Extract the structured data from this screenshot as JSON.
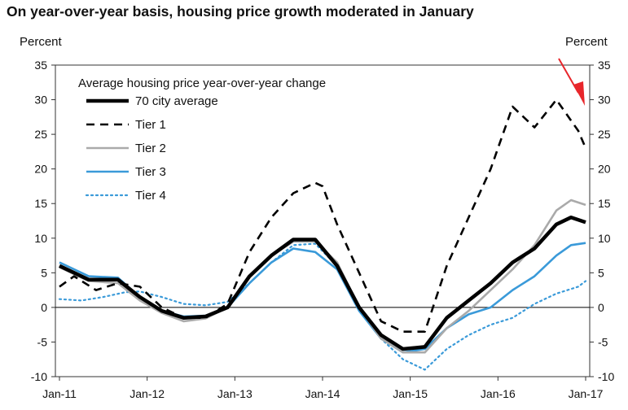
{
  "title": "On year-over-year basis, housing price growth moderated in January",
  "chart_data": {
    "type": "line",
    "ylabel_left": "Percent",
    "ylabel_right": "Percent",
    "ylim": [
      -10,
      35
    ],
    "yticks": [
      -10,
      -5,
      0,
      5,
      10,
      15,
      20,
      25,
      30,
      35
    ],
    "xlim": [
      "2011-01",
      "2017-01"
    ],
    "xticks": [
      "Jan-11",
      "Jan-12",
      "Jan-13",
      "Jan-14",
      "Jan-15",
      "Jan-16",
      "Jan-17"
    ],
    "zero_line": true,
    "legend_title": "Average housing price year-over-year change",
    "legend_position": "top-left",
    "annotations": [
      "red arrow pointing down at the January 2017 value"
    ],
    "series": [
      {
        "name": "70 city average",
        "style": "solid-thick",
        "color": "#000000",
        "x": [
          "2011-01",
          "2011-05",
          "2011-09",
          "2011-12",
          "2012-03",
          "2012-06",
          "2012-09",
          "2012-12",
          "2013-03",
          "2013-06",
          "2013-09",
          "2013-12",
          "2014-03",
          "2014-06",
          "2014-09",
          "2014-12",
          "2015-03",
          "2015-06",
          "2015-09",
          "2015-12",
          "2016-03",
          "2016-06",
          "2016-09",
          "2016-11",
          "2017-01"
        ],
        "values": [
          6.0,
          4.0,
          4.0,
          1.5,
          -0.5,
          -1.5,
          -1.3,
          0.0,
          4.5,
          7.5,
          9.8,
          9.8,
          6.0,
          0.0,
          -4.0,
          -6.0,
          -5.7,
          -1.5,
          1.0,
          3.5,
          6.5,
          8.5,
          12.0,
          13.0,
          12.3
        ]
      },
      {
        "name": "Tier 1",
        "style": "dashed",
        "color": "#000000",
        "x": [
          "2011-01",
          "2011-03",
          "2011-06",
          "2011-09",
          "2011-12",
          "2012-03",
          "2012-06",
          "2012-09",
          "2012-12",
          "2013-03",
          "2013-06",
          "2013-09",
          "2013-12",
          "2014-01",
          "2014-03",
          "2014-06",
          "2014-09",
          "2014-12",
          "2015-03",
          "2015-06",
          "2015-09",
          "2015-12",
          "2016-03",
          "2016-06",
          "2016-09",
          "2016-12",
          "2017-01"
        ],
        "values": [
          3.0,
          4.5,
          2.5,
          3.5,
          3.0,
          0.0,
          -1.5,
          -1.5,
          0.5,
          8.0,
          13.0,
          16.5,
          18.0,
          17.5,
          12.0,
          5.0,
          -2.0,
          -3.5,
          -3.5,
          6.0,
          13.0,
          20.0,
          29.0,
          26.0,
          30.0,
          25.5,
          23.0
        ]
      },
      {
        "name": "Tier 2",
        "style": "solid",
        "color": "#aaaaaa",
        "x": [
          "2011-01",
          "2011-05",
          "2011-09",
          "2011-12",
          "2012-03",
          "2012-06",
          "2012-09",
          "2012-12",
          "2013-03",
          "2013-06",
          "2013-09",
          "2013-12",
          "2014-03",
          "2014-06",
          "2014-09",
          "2014-12",
          "2015-03",
          "2015-06",
          "2015-09",
          "2015-12",
          "2016-03",
          "2016-06",
          "2016-09",
          "2016-11",
          "2017-01"
        ],
        "values": [
          5.8,
          3.8,
          3.5,
          1.0,
          -0.8,
          -2.0,
          -1.6,
          0.0,
          4.5,
          7.5,
          9.5,
          9.5,
          6.5,
          0.0,
          -4.5,
          -6.5,
          -6.5,
          -3.0,
          -0.5,
          2.5,
          5.5,
          9.0,
          14.0,
          15.5,
          14.8
        ]
      },
      {
        "name": "Tier 3",
        "style": "solid",
        "color": "#3a9ad9",
        "x": [
          "2011-01",
          "2011-05",
          "2011-09",
          "2011-12",
          "2012-03",
          "2012-06",
          "2012-09",
          "2012-12",
          "2013-03",
          "2013-06",
          "2013-09",
          "2013-12",
          "2014-03",
          "2014-06",
          "2014-09",
          "2014-12",
          "2015-03",
          "2015-06",
          "2015-09",
          "2015-12",
          "2016-03",
          "2016-06",
          "2016-09",
          "2016-11",
          "2017-01"
        ],
        "values": [
          6.5,
          4.5,
          4.3,
          1.5,
          -0.5,
          -1.3,
          -1.2,
          0.0,
          3.5,
          6.5,
          8.5,
          8.0,
          5.5,
          -0.5,
          -4.5,
          -6.5,
          -6.0,
          -3.0,
          -1.0,
          0.0,
          2.5,
          4.5,
          7.5,
          9.0,
          9.3
        ]
      },
      {
        "name": "Tier 4",
        "style": "dotted",
        "color": "#3a9ad9",
        "x": [
          "2011-01",
          "2011-04",
          "2011-07",
          "2011-10",
          "2011-12",
          "2012-03",
          "2012-06",
          "2012-09",
          "2012-12",
          "2013-03",
          "2013-06",
          "2013-09",
          "2013-12",
          "2014-03",
          "2014-06",
          "2014-09",
          "2014-12",
          "2015-03",
          "2015-06",
          "2015-09",
          "2015-12",
          "2016-03",
          "2016-06",
          "2016-09",
          "2016-12",
          "2017-01"
        ],
        "values": [
          1.2,
          1.0,
          1.5,
          2.2,
          2.3,
          1.5,
          0.5,
          0.3,
          0.8,
          3.5,
          6.5,
          9.0,
          9.2,
          6.0,
          0.0,
          -4.5,
          -7.5,
          -9.0,
          -6.0,
          -4.0,
          -2.5,
          -1.5,
          0.5,
          2.0,
          3.0,
          3.8
        ]
      }
    ]
  }
}
